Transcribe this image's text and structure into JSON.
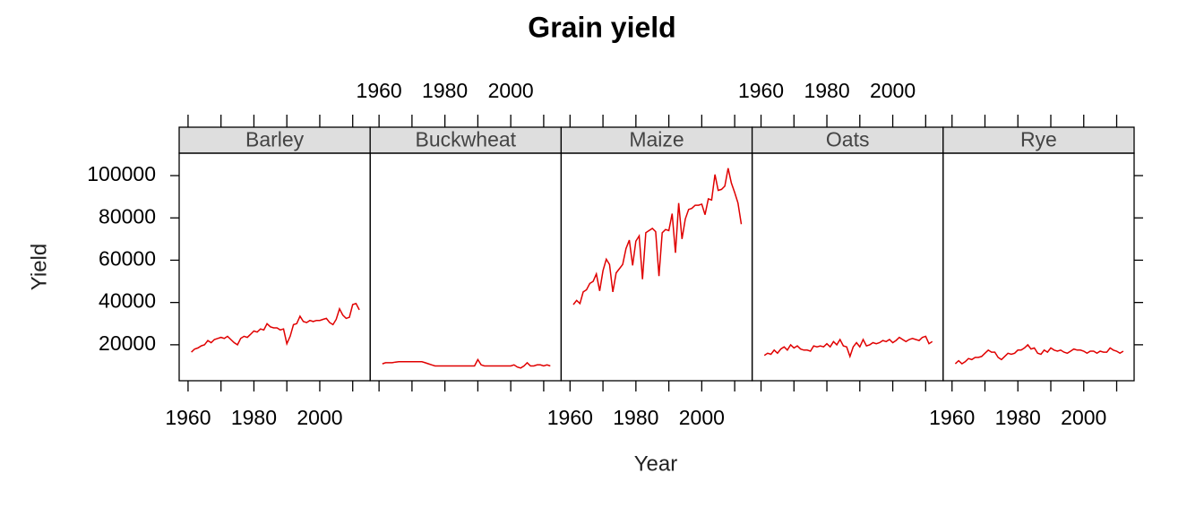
{
  "chart_data": {
    "type": "line",
    "title": "Grain yield",
    "xlabel": "Year",
    "ylabel": "Yield",
    "x": [
      1961,
      1962,
      1963,
      1964,
      1965,
      1966,
      1967,
      1968,
      1969,
      1970,
      1971,
      1972,
      1973,
      1974,
      1975,
      1976,
      1977,
      1978,
      1979,
      1980,
      1981,
      1982,
      1983,
      1984,
      1985,
      1986,
      1987,
      1988,
      1989,
      1990,
      1991,
      1992,
      1993,
      1994,
      1995,
      1996,
      1997,
      1998,
      1999,
      2000,
      2001,
      2002,
      2003,
      2004,
      2005,
      2006,
      2007,
      2008,
      2009,
      2010,
      2011,
      2012
    ],
    "series": [
      {
        "name": "Barley",
        "color": "#e00000",
        "values": [
          16500,
          18000,
          18500,
          19500,
          20000,
          22000,
          21000,
          22500,
          23000,
          23500,
          23000,
          24000,
          22500,
          21000,
          20000,
          23000,
          24000,
          23500,
          25000,
          26500,
          26000,
          27500,
          27000,
          30000,
          28500,
          28000,
          28000,
          27000,
          27500,
          20500,
          24000,
          29500,
          30000,
          33500,
          31000,
          30500,
          31500,
          31000,
          31500,
          31500,
          32000,
          32500,
          30500,
          29500,
          32000,
          37000,
          34000,
          32500,
          33000,
          39000,
          39500,
          36500
        ]
      },
      {
        "name": "Buckwheat",
        "color": "#e00000",
        "values": [
          11000,
          11500,
          11500,
          11500,
          11800,
          12000,
          12000,
          12000,
          12000,
          12000,
          12000,
          12000,
          12000,
          11500,
          11000,
          10500,
          10000,
          10000,
          10000,
          10000,
          10000,
          10000,
          10000,
          10000,
          10000,
          10000,
          10000,
          10000,
          10000,
          13000,
          10500,
          10000,
          10000,
          10000,
          10000,
          10000,
          10000,
          10000,
          10000,
          10000,
          10500,
          9500,
          9000,
          10000,
          11500,
          10000,
          10000,
          10500,
          10500,
          10000,
          10500,
          10000
        ]
      },
      {
        "name": "Maize",
        "color": "#e00000",
        "values": [
          39000,
          41000,
          39500,
          45000,
          46000,
          49000,
          50000,
          53500,
          45500,
          55000,
          60500,
          58000,
          45000,
          54000,
          56000,
          58000,
          65500,
          69500,
          57500,
          69000,
          71500,
          51000,
          73000,
          74000,
          75000,
          73500,
          52500,
          73000,
          74500,
          74000,
          82000,
          63500,
          87000,
          70000,
          79500,
          84000,
          84500,
          86000,
          86000,
          86500,
          81500,
          89000,
          88500,
          100500,
          93000,
          93500,
          95000,
          103500,
          96500,
          92000,
          87000,
          77000
        ]
      },
      {
        "name": "Oats",
        "color": "#e00000",
        "values": [
          15000,
          16000,
          15500,
          17500,
          16000,
          18000,
          19000,
          17500,
          20000,
          18500,
          19500,
          18000,
          17500,
          17500,
          17000,
          19500,
          19000,
          19500,
          19000,
          20500,
          19000,
          21500,
          20000,
          22500,
          19500,
          19000,
          14500,
          19000,
          21000,
          19000,
          22500,
          19500,
          20000,
          21000,
          20500,
          21000,
          22000,
          21500,
          22500,
          21000,
          22000,
          23500,
          22500,
          21500,
          22500,
          23000,
          22500,
          22000,
          23500,
          24000,
          20500,
          21500
        ]
      },
      {
        "name": "Rye",
        "color": "#e00000",
        "values": [
          11000,
          12500,
          11000,
          12000,
          13500,
          13000,
          14000,
          14000,
          14500,
          16000,
          17500,
          16500,
          16500,
          14000,
          13000,
          14500,
          16000,
          15500,
          16000,
          17500,
          17500,
          18500,
          20000,
          18000,
          18500,
          16000,
          15500,
          17500,
          16500,
          18500,
          17500,
          17000,
          17500,
          16500,
          16000,
          17000,
          18000,
          17500,
          17500,
          17000,
          16000,
          17000,
          17000,
          16000,
          17000,
          16500,
          16500,
          18500,
          17500,
          17000,
          16000,
          17000
        ]
      }
    ],
    "xlim": [
      1957.3,
      2015.3
    ],
    "xticks": [
      1960,
      1980,
      2000
    ],
    "x_minor_ticks": [
      1970,
      1990,
      2010
    ],
    "ylim": [
      3000,
      110600
    ],
    "yticks": [
      20000,
      40000,
      60000,
      80000,
      100000
    ],
    "strip_color": "#dedede"
  }
}
